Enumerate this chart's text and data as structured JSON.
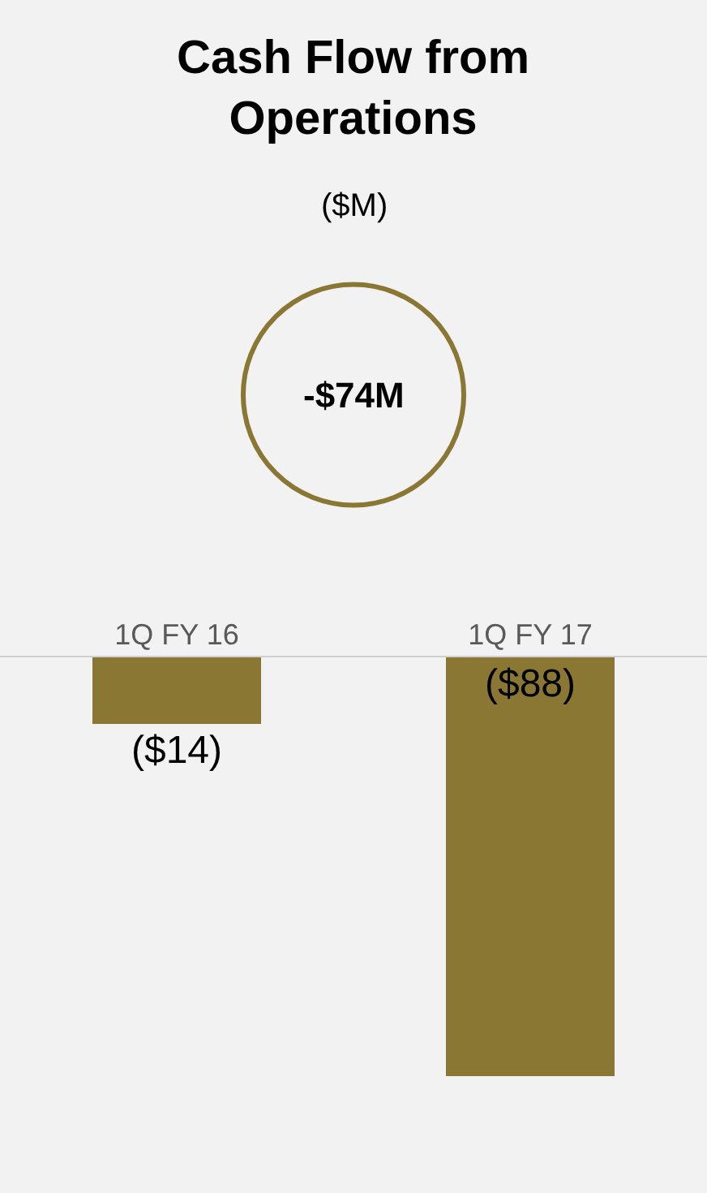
{
  "chart_data": {
    "type": "bar",
    "title": "Cash Flow from\nOperations",
    "subtitle": "($M)",
    "annotations": [
      "-$74M"
    ],
    "categories": [
      "1Q FY 16",
      "1Q FY 17"
    ],
    "values": [
      -14,
      -88
    ],
    "value_labels": [
      "($14)",
      "($88)"
    ],
    "color": "#8b7734"
  }
}
